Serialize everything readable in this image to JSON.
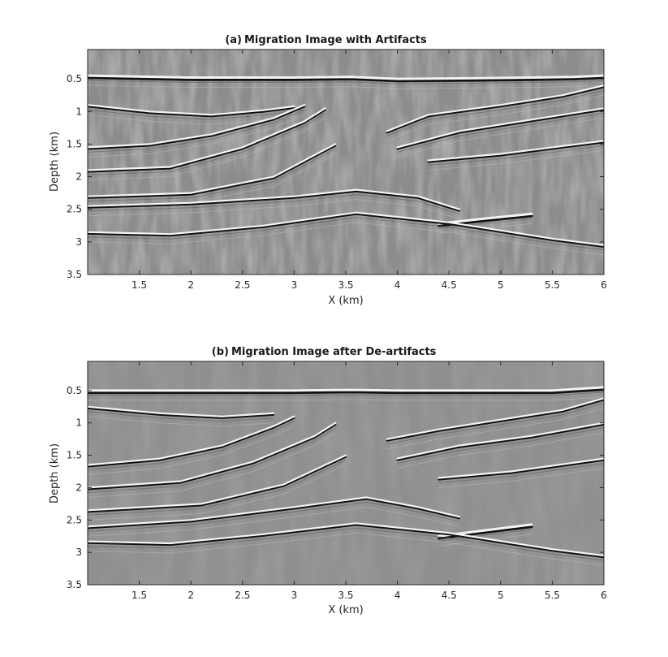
{
  "chart_data": [
    {
      "type": "heatmap",
      "panel": "(a)",
      "title": "Migration Image with Artifacts",
      "xlabel": "X (km)",
      "ylabel": "Depth (km)",
      "xlim": [
        1.0,
        6.0
      ],
      "ylim": [
        0.05,
        3.5
      ],
      "y_reversed": true,
      "xticks": [
        1.5,
        2,
        2.5,
        3,
        3.5,
        4,
        4.5,
        5,
        5.5,
        6
      ],
      "xtick_labels": [
        "1.5",
        "2",
        "2.5",
        "3",
        "3.5",
        "4",
        "4.5",
        "5",
        "5.5",
        "6"
      ],
      "yticks": [
        0.5,
        1,
        1.5,
        2,
        2.5,
        3,
        3.5
      ],
      "ytick_labels": [
        "0.5",
        "1",
        "1.5",
        "2",
        "2.5",
        "3",
        "3.5"
      ],
      "colormap": "gray",
      "grid": false,
      "artifacts": true,
      "reflectors": [
        {
          "name": "seabed",
          "points": [
            [
              1.0,
              0.45
            ],
            [
              2.0,
              0.48
            ],
            [
              3.0,
              0.48
            ],
            [
              3.55,
              0.47
            ],
            [
              4.0,
              0.5
            ],
            [
              4.8,
              0.49
            ],
            [
              5.3,
              0.48
            ],
            [
              5.7,
              0.47
            ],
            [
              6.0,
              0.45
            ]
          ]
        },
        {
          "name": "left-dip-1",
          "points": [
            [
              1.0,
              0.9
            ],
            [
              1.6,
              1.0
            ],
            [
              2.2,
              1.05
            ],
            [
              2.7,
              0.98
            ],
            [
              3.0,
              0.92
            ]
          ]
        },
        {
          "name": "left-dip-2",
          "points": [
            [
              1.0,
              1.55
            ],
            [
              1.6,
              1.5
            ],
            [
              2.2,
              1.35
            ],
            [
              2.8,
              1.1
            ],
            [
              3.1,
              0.9
            ]
          ]
        },
        {
          "name": "left-dip-3",
          "points": [
            [
              1.0,
              1.9
            ],
            [
              1.8,
              1.85
            ],
            [
              2.5,
              1.55
            ],
            [
              3.1,
              1.15
            ],
            [
              3.3,
              0.95
            ]
          ]
        },
        {
          "name": "left-dip-4",
          "points": [
            [
              1.0,
              2.3
            ],
            [
              2.0,
              2.25
            ],
            [
              2.8,
              2.0
            ],
            [
              3.4,
              1.5
            ]
          ]
        },
        {
          "name": "right-dip-1",
          "points": [
            [
              3.9,
              1.3
            ],
            [
              4.3,
              1.05
            ],
            [
              5.0,
              0.9
            ],
            [
              5.6,
              0.75
            ],
            [
              6.0,
              0.6
            ]
          ]
        },
        {
          "name": "right-dip-2",
          "points": [
            [
              4.0,
              1.55
            ],
            [
              4.6,
              1.3
            ],
            [
              5.2,
              1.15
            ],
            [
              6.0,
              0.95
            ]
          ]
        },
        {
          "name": "right-dip-3",
          "points": [
            [
              4.3,
              1.75
            ],
            [
              5.0,
              1.65
            ],
            [
              6.0,
              1.45
            ]
          ]
        },
        {
          "name": "deep-1",
          "points": [
            [
              1.0,
              2.45
            ],
            [
              2.0,
              2.4
            ],
            [
              3.0,
              2.3
            ],
            [
              3.6,
              2.2
            ],
            [
              4.2,
              2.3
            ],
            [
              4.6,
              2.5
            ]
          ]
        },
        {
          "name": "bright-spot",
          "points": [
            [
              4.4,
              2.72
            ],
            [
              4.8,
              2.65
            ],
            [
              5.3,
              2.57
            ]
          ]
        },
        {
          "name": "basement",
          "points": [
            [
              1.0,
              2.85
            ],
            [
              1.8,
              2.88
            ],
            [
              2.7,
              2.75
            ],
            [
              3.6,
              2.55
            ],
            [
              4.5,
              2.7
            ],
            [
              5.5,
              2.95
            ],
            [
              6.0,
              3.05
            ]
          ]
        }
      ]
    },
    {
      "type": "heatmap",
      "panel": "(b)",
      "title": "Migration Image after De-artifacts",
      "xlabel": "X (km)",
      "ylabel": "Depth (km)",
      "xlim": [
        1.0,
        6.0
      ],
      "ylim": [
        0.05,
        3.5
      ],
      "y_reversed": true,
      "xticks": [
        1.5,
        2,
        2.5,
        3,
        3.5,
        4,
        4.5,
        5,
        5.5,
        6
      ],
      "xtick_labels": [
        "1.5",
        "2",
        "2.5",
        "3",
        "3.5",
        "4",
        "4.5",
        "5",
        "5.5",
        "6"
      ],
      "yticks": [
        0.5,
        1,
        1.5,
        2,
        2.5,
        3,
        3.5
      ],
      "ytick_labels": [
        "0.5",
        "1",
        "1.5",
        "2",
        "2.5",
        "3",
        "3.5"
      ],
      "colormap": "gray",
      "grid": false,
      "artifacts": false,
      "reflectors": [
        {
          "name": "seabed",
          "points": [
            [
              1.0,
              0.5
            ],
            [
              2.0,
              0.5
            ],
            [
              3.0,
              0.5
            ],
            [
              3.55,
              0.49
            ],
            [
              4.0,
              0.5
            ],
            [
              4.8,
              0.5
            ],
            [
              5.5,
              0.5
            ],
            [
              6.0,
              0.45
            ]
          ]
        },
        {
          "name": "left-dip-1",
          "points": [
            [
              1.0,
              0.75
            ],
            [
              1.7,
              0.85
            ],
            [
              2.3,
              0.9
            ],
            [
              2.8,
              0.85
            ]
          ]
        },
        {
          "name": "left-dip-2",
          "points": [
            [
              1.0,
              1.65
            ],
            [
              1.7,
              1.55
            ],
            [
              2.3,
              1.35
            ],
            [
              2.8,
              1.05
            ],
            [
              3.0,
              0.9
            ]
          ]
        },
        {
          "name": "left-dip-3",
          "points": [
            [
              1.0,
              2.0
            ],
            [
              1.9,
              1.9
            ],
            [
              2.6,
              1.6
            ],
            [
              3.2,
              1.2
            ],
            [
              3.4,
              1.0
            ]
          ]
        },
        {
          "name": "left-dip-4",
          "points": [
            [
              1.0,
              2.35
            ],
            [
              2.1,
              2.25
            ],
            [
              2.9,
              1.95
            ],
            [
              3.5,
              1.5
            ]
          ]
        },
        {
          "name": "right-dip-1",
          "points": [
            [
              3.9,
              1.25
            ],
            [
              4.4,
              1.1
            ],
            [
              5.0,
              0.95
            ],
            [
              5.6,
              0.8
            ],
            [
              6.0,
              0.62
            ]
          ]
        },
        {
          "name": "right-dip-2",
          "points": [
            [
              4.0,
              1.55
            ],
            [
              4.6,
              1.35
            ],
            [
              5.3,
              1.2
            ],
            [
              6.0,
              1.0
            ]
          ]
        },
        {
          "name": "right-dip-3",
          "points": [
            [
              4.4,
              1.85
            ],
            [
              5.1,
              1.75
            ],
            [
              6.0,
              1.55
            ]
          ]
        },
        {
          "name": "deep-1",
          "points": [
            [
              1.0,
              2.6
            ],
            [
              2.0,
              2.5
            ],
            [
              3.0,
              2.3
            ],
            [
              3.7,
              2.15
            ],
            [
              4.2,
              2.3
            ],
            [
              4.6,
              2.45
            ]
          ]
        },
        {
          "name": "bright-spot",
          "points": [
            [
              4.4,
              2.75
            ],
            [
              4.9,
              2.65
            ],
            [
              5.3,
              2.57
            ]
          ]
        },
        {
          "name": "basement",
          "points": [
            [
              1.0,
              2.83
            ],
            [
              1.8,
              2.86
            ],
            [
              2.7,
              2.72
            ],
            [
              3.6,
              2.55
            ],
            [
              4.5,
              2.7
            ],
            [
              5.5,
              2.95
            ],
            [
              6.0,
              3.05
            ]
          ]
        }
      ]
    }
  ]
}
